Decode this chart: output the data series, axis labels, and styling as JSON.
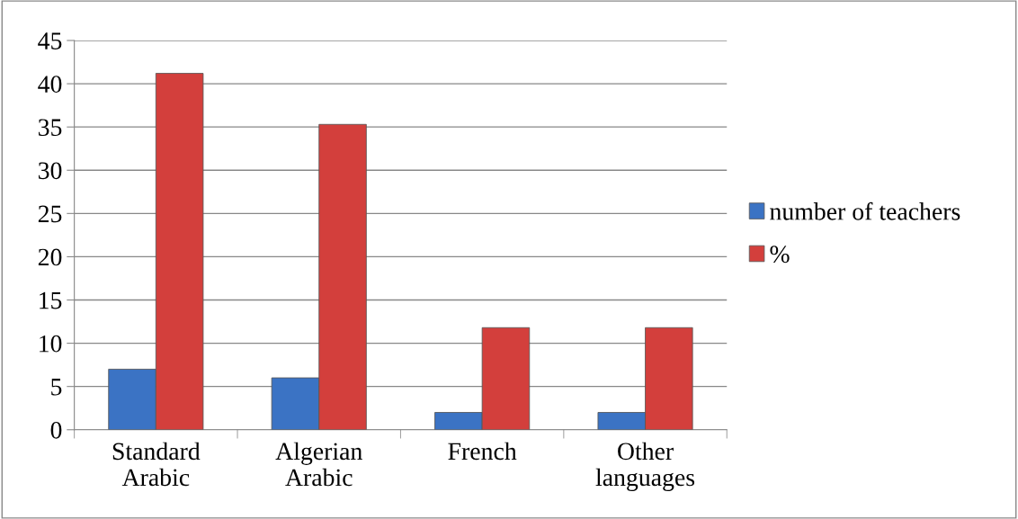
{
  "chart_data": {
    "type": "bar",
    "categories": [
      "Standard\nArabic",
      "Algerian\nArabic",
      "French",
      "Other\nlanguages"
    ],
    "series": [
      {
        "name": "number of teachers",
        "color": "#3b73c4",
        "values": [
          7,
          6,
          2,
          2
        ]
      },
      {
        "name": "%",
        "color": "#d33f3c",
        "values": [
          41.2,
          35.3,
          11.8,
          11.8
        ]
      }
    ],
    "ylim": [
      0,
      45
    ],
    "yticks": [
      0,
      5,
      10,
      15,
      20,
      25,
      30,
      35,
      40,
      45
    ],
    "grid": "y",
    "legend": "right"
  }
}
